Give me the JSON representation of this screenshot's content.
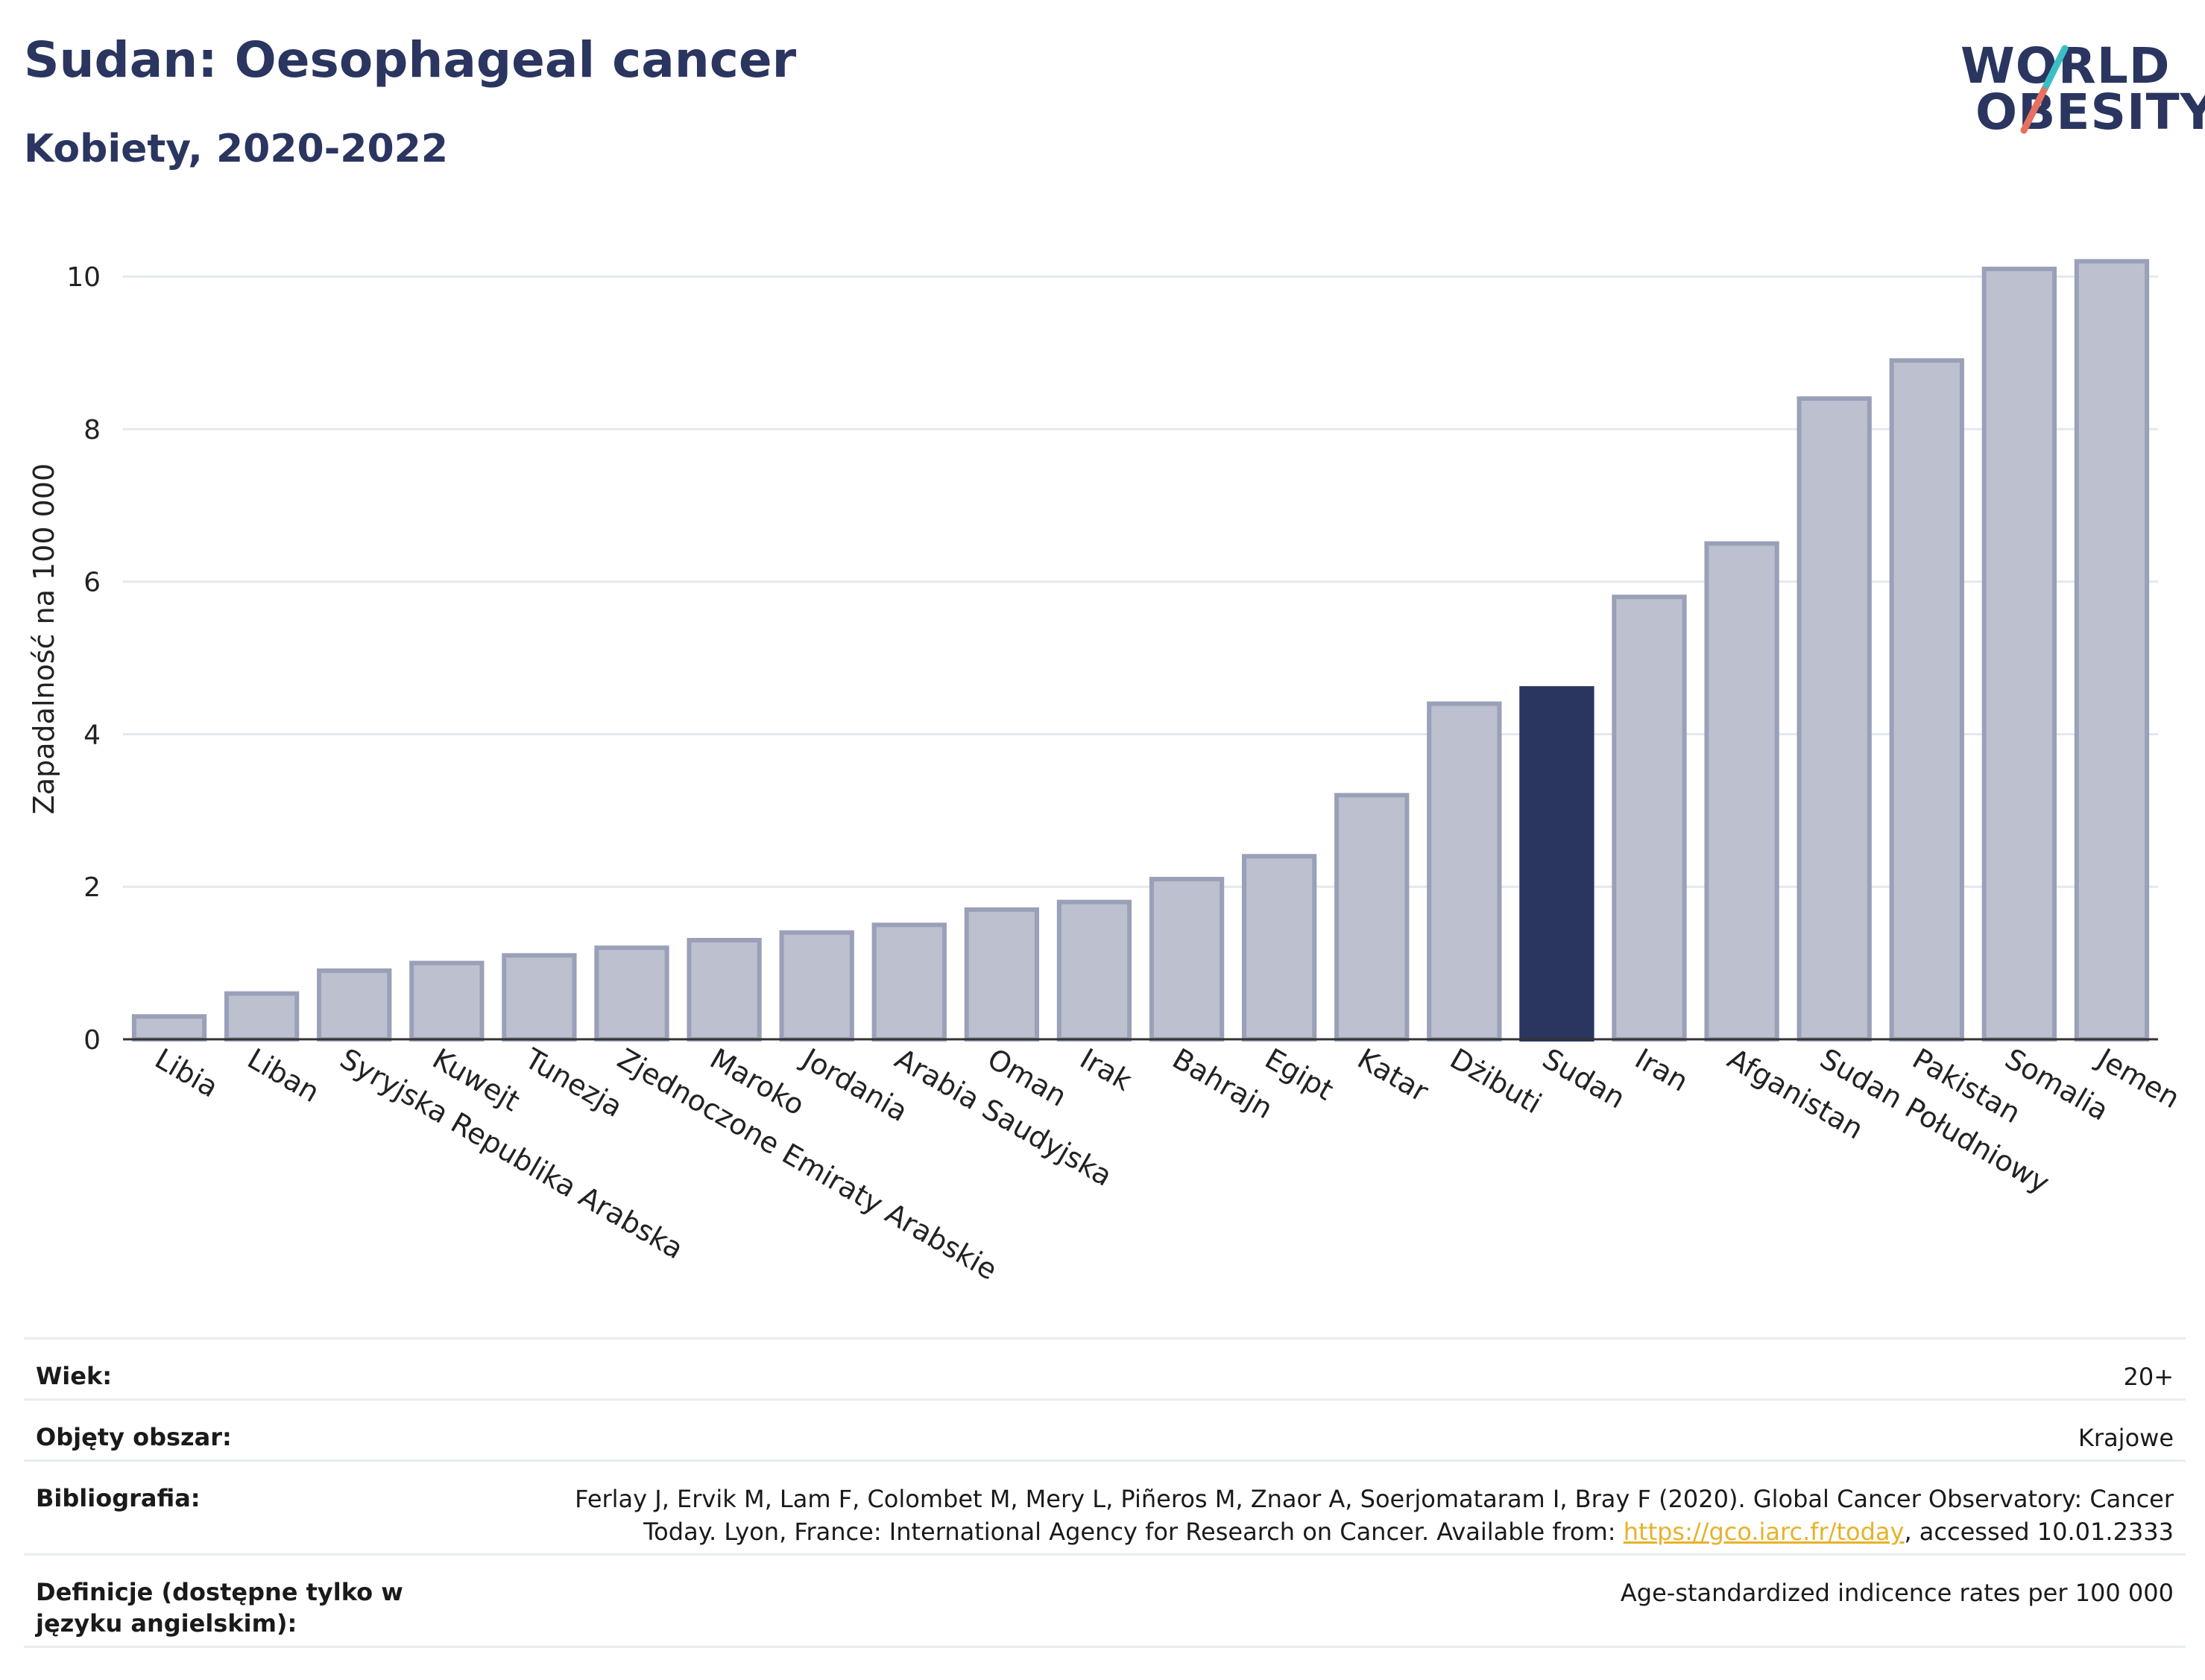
{
  "header": {
    "title": "Sudan: Oesophageal cancer",
    "subtitle": "Kobiety, 2020-2022"
  },
  "logo": {
    "line1": "WORLD",
    "line2": "OBESITY"
  },
  "colors": {
    "bar": "#bcc0cf",
    "bar_border": "#9aa0b8",
    "highlight": "#2a3560",
    "grid": "#e4e8ef",
    "text": "#2a3560"
  },
  "chart_data": {
    "type": "bar",
    "ylabel": "Zapadalność na 100 000",
    "ylim": [
      0,
      10.5
    ],
    "yticks": [
      0,
      2,
      4,
      6,
      8,
      10
    ],
    "grid": true,
    "highlight": "Sudan",
    "categories": [
      "Libia",
      "Liban",
      "Syryjska Republika Arabska",
      "Kuwejt",
      "Tunezja",
      "Zjednoczone Emiraty Arabskie",
      "Maroko",
      "Jordania",
      "Arabia Saudyjska",
      "Oman",
      "Irak",
      "Bahrajn",
      "Egipt",
      "Katar",
      "Dżibuti",
      "Sudan",
      "Iran",
      "Afganistan",
      "Sudan Południowy",
      "Pakistan",
      "Somalia",
      "Jemen"
    ],
    "values": [
      0.3,
      0.6,
      0.9,
      1.0,
      1.1,
      1.2,
      1.3,
      1.4,
      1.5,
      1.7,
      1.8,
      2.1,
      2.4,
      3.2,
      4.4,
      4.6,
      5.8,
      6.5,
      8.4,
      8.9,
      10.1,
      10.2
    ]
  },
  "info_table": {
    "age_label": "Wiek:",
    "age_value": "20+",
    "coverage_label": "Objęty obszar:",
    "coverage_value": "Krajowe",
    "biblio_label": "Bibliografia:",
    "biblio_text_1": "Ferlay J, Ervik M, Lam F, Colombet M, Mery L, Piñeros M, Znaor A, Soerjomataram I, Bray F (2020). Global Cancer Observatory: Cancer",
    "biblio_text_2": "Today. Lyon, France: International Agency for Research on Cancer. Available from: ",
    "biblio_link": "https://gco.iarc.fr/today",
    "biblio_text_3": ", accessed 10.01.2333",
    "def_label": "Definicje (dostępne tylko w języku angielskim):",
    "def_value": "Age-standardized indicence rates per 100 000"
  }
}
